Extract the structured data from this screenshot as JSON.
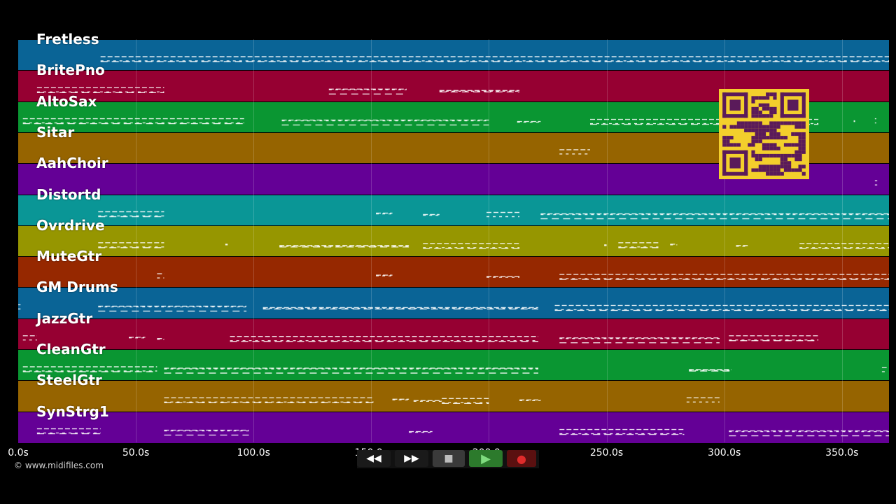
{
  "tracks": [
    {
      "label": "Fretless",
      "color": "#0a6496"
    },
    {
      "label": "BritePno",
      "color": "#960032"
    },
    {
      "label": "AltoSax",
      "color": "#0a9632"
    },
    {
      "label": "Sitar",
      "color": "#966400"
    },
    {
      "label": "AahChoir",
      "color": "#640096"
    },
    {
      "label": "Distortd",
      "color": "#0a9696"
    },
    {
      "label": "Ovrdrive",
      "color": "#969600"
    },
    {
      "label": "MuteGtr",
      "color": "#962800"
    },
    {
      "label": "GM Drums",
      "color": "#0a6496"
    },
    {
      "label": "JazzGtr",
      "color": "#960032"
    },
    {
      "label": "CleanGtr",
      "color": "#0a9632"
    },
    {
      "label": "SteelGtr",
      "color": "#966400"
    },
    {
      "label": "SynStrg1",
      "color": "#640096"
    }
  ],
  "time_axis": {
    "ticks": [
      "0.0s",
      "50.0s",
      "100.0s",
      "150.0s",
      "200.0s",
      "250.0s",
      "300.0s",
      "350.0s"
    ],
    "tick_seconds": [
      0,
      50,
      100,
      150,
      200,
      250,
      300,
      350
    ],
    "max_seconds": 370
  },
  "note_segments": [
    [
      [
        35,
        370
      ]
    ],
    [
      [
        8,
        62
      ],
      [
        132,
        165
      ],
      [
        179,
        213
      ]
    ],
    [
      [
        2,
        96
      ],
      [
        112,
        200
      ],
      [
        212,
        222
      ],
      [
        243,
        340
      ],
      [
        355,
        355.5
      ],
      [
        364,
        364.5
      ]
    ],
    [
      [
        230,
        243
      ]
    ],
    [
      [
        364,
        365
      ]
    ],
    [
      [
        34,
        62
      ],
      [
        152,
        159
      ],
      [
        172,
        179
      ],
      [
        199,
        213
      ],
      [
        222,
        370
      ]
    ],
    [
      [
        34,
        62
      ],
      [
        88,
        89
      ],
      [
        111,
        166
      ],
      [
        172,
        213
      ],
      [
        249,
        250
      ],
      [
        255,
        272
      ],
      [
        277,
        280
      ],
      [
        305,
        310
      ],
      [
        332,
        370
      ]
    ],
    [
      [
        59,
        62
      ],
      [
        152,
        159
      ],
      [
        199,
        213
      ],
      [
        230,
        370
      ]
    ],
    [
      [
        0,
        1
      ],
      [
        34,
        97
      ],
      [
        104,
        221
      ],
      [
        228,
        370
      ]
    ],
    [
      [
        2,
        8
      ],
      [
        47,
        54
      ],
      [
        59,
        62
      ],
      [
        90,
        221
      ],
      [
        230,
        298
      ],
      [
        302,
        340
      ]
    ],
    [
      [
        2,
        59
      ],
      [
        62,
        221
      ],
      [
        285,
        303
      ],
      [
        367,
        369
      ]
    ],
    [
      [
        62,
        151
      ],
      [
        159,
        166
      ],
      [
        168,
        180
      ],
      [
        180,
        200
      ],
      [
        213,
        222
      ],
      [
        284,
        298
      ]
    ],
    [
      [
        8,
        35
      ],
      [
        62,
        98
      ],
      [
        166,
        176
      ],
      [
        230,
        283
      ],
      [
        302,
        370
      ]
    ]
  ],
  "credit": "© www.midifiles.com",
  "transport": {
    "rewind": "◀◀",
    "forward": "▶▶",
    "stop": "■",
    "play": "▶",
    "record": "●"
  }
}
